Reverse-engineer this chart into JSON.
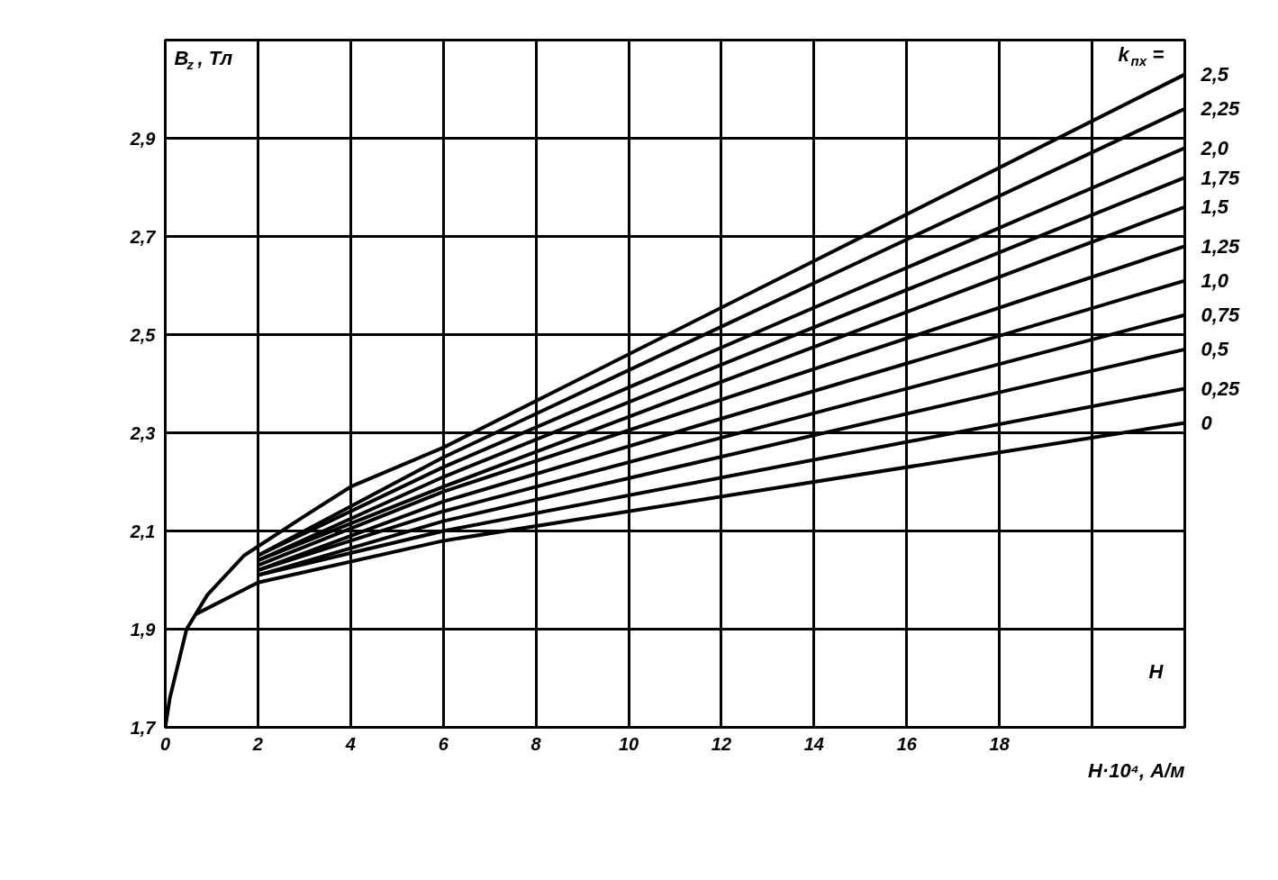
{
  "chart_data": {
    "type": "line",
    "xlabel": "H·10⁴, А/м",
    "ylabel": "B$_{z}$, Тл",
    "legend_title": "k$_{пх}$ =",
    "annotations": [
      "H"
    ],
    "xlim": [
      0,
      22
    ],
    "ylim": [
      1.7,
      3.1
    ],
    "xticks": [
      0,
      2,
      4,
      6,
      8,
      10,
      12,
      14,
      16,
      18,
      {
        "value": 20,
        "label": null
      },
      {
        "value": 22,
        "label": null
      }
    ],
    "yticks": [
      {
        "value": 1.7,
        "label": "1,7"
      },
      {
        "value": 1.9,
        "label": "1,9"
      },
      {
        "value": 2.1,
        "label": "2,1"
      },
      {
        "value": 2.3,
        "label": "2,3"
      },
      {
        "value": 2.5,
        "label": "2,5"
      },
      {
        "value": 2.7,
        "label": "2,7"
      },
      {
        "value": 2.9,
        "label": "2,9"
      },
      {
        "value": 3.1,
        "label": null
      }
    ],
    "grid": true,
    "legend": false,
    "marker": "none",
    "line_style": "solid",
    "series": [
      {
        "name": "2,5",
        "color": "#000000",
        "x": [
          0,
          0.1,
          0.46,
          0.91,
          1.7,
          3,
          4,
          6,
          22
        ],
        "values": [
          1.7,
          1.76,
          1.9,
          1.97,
          2.05,
          2.13,
          2.19,
          2.27,
          3.03
        ]
      },
      {
        "name": "2,25",
        "color": "#000000",
        "x": [
          2,
          6,
          22
        ],
        "values": [
          2.05,
          2.25,
          2.96
        ]
      },
      {
        "name": "2,0",
        "color": "#000000",
        "x": [
          2,
          6,
          22
        ],
        "values": [
          2.05,
          2.23,
          2.88
        ]
      },
      {
        "name": "1,75",
        "color": "#000000",
        "x": [
          2,
          6,
          22
        ],
        "values": [
          2.04,
          2.21,
          2.82
        ]
      },
      {
        "name": "1,5",
        "color": "#000000",
        "x": [
          2,
          6,
          22
        ],
        "values": [
          2.04,
          2.19,
          2.76
        ]
      },
      {
        "name": "1,25",
        "color": "#000000",
        "x": [
          2,
          6,
          22
        ],
        "values": [
          2.03,
          2.18,
          2.68
        ]
      },
      {
        "name": "1,0",
        "color": "#000000",
        "x": [
          2,
          6,
          22
        ],
        "values": [
          2.02,
          2.16,
          2.61
        ]
      },
      {
        "name": "0,75",
        "color": "#000000",
        "x": [
          2,
          6,
          22
        ],
        "values": [
          2.02,
          2.14,
          2.54
        ]
      },
      {
        "name": "0,5",
        "color": "#000000",
        "x": [
          2,
          6,
          22
        ],
        "values": [
          2.01,
          2.12,
          2.47
        ]
      },
      {
        "name": "0,25",
        "color": "#000000",
        "x": [
          2,
          6,
          22
        ],
        "values": [
          2.01,
          2.1,
          2.39
        ]
      },
      {
        "name": "0",
        "color": "#000000",
        "x": [
          0.65,
          2,
          6,
          22
        ],
        "values": [
          1.93,
          1.995,
          2.08,
          2.32
        ]
      }
    ]
  }
}
